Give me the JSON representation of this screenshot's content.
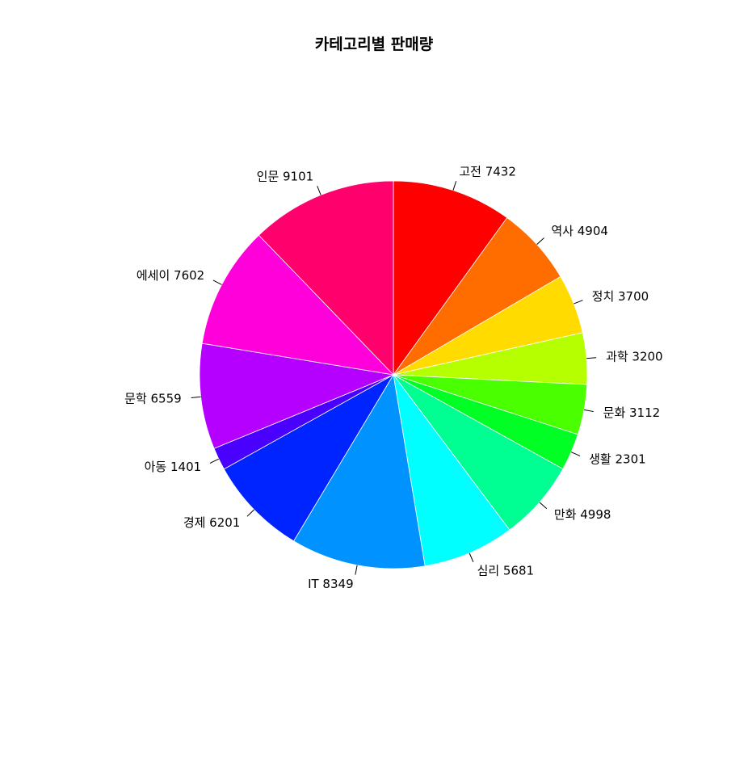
{
  "chart_data": {
    "type": "pie",
    "title": "카테고리별 판매량",
    "start_angle_deg": 90,
    "direction": "clockwise",
    "slices": [
      {
        "category": "고전",
        "value": 7432,
        "label": "고전 7432",
        "color": "#FF0000"
      },
      {
        "category": "역사",
        "value": 4904,
        "label": "역사 4904",
        "color": "#FF6D00"
      },
      {
        "category": "정치",
        "value": 3700,
        "label": "정치 3700",
        "color": "#FFDB00"
      },
      {
        "category": "과학",
        "value": 3200,
        "label": "과학 3200",
        "color": "#B6FF00"
      },
      {
        "category": "문화",
        "value": 3112,
        "label": "문화 3112",
        "color": "#49FF00"
      },
      {
        "category": "생활",
        "value": 2301,
        "label": "생활 2301",
        "color": "#00FF24"
      },
      {
        "category": "만화",
        "value": 4998,
        "label": "만화 4998",
        "color": "#00FF92"
      },
      {
        "category": "심리",
        "value": 5681,
        "label": "심리 5681",
        "color": "#00FFFF"
      },
      {
        "category": "IT",
        "value": 8349,
        "label": "IT 8349",
        "color": "#0092FF"
      },
      {
        "category": "경제",
        "value": 6201,
        "label": "경제 6201",
        "color": "#0024FF"
      },
      {
        "category": "아동",
        "value": 1401,
        "label": "아동 1401",
        "color": "#4900FF"
      },
      {
        "category": "문학",
        "value": 6559,
        "label": "문학 6559",
        "color": "#B600FF"
      },
      {
        "category": "에세이",
        "value": 7602,
        "label": "에세이 7602",
        "color": "#FF00DB"
      },
      {
        "category": "인문",
        "value": 9101,
        "label": "인문 9101",
        "color": "#FF006D"
      }
    ]
  }
}
